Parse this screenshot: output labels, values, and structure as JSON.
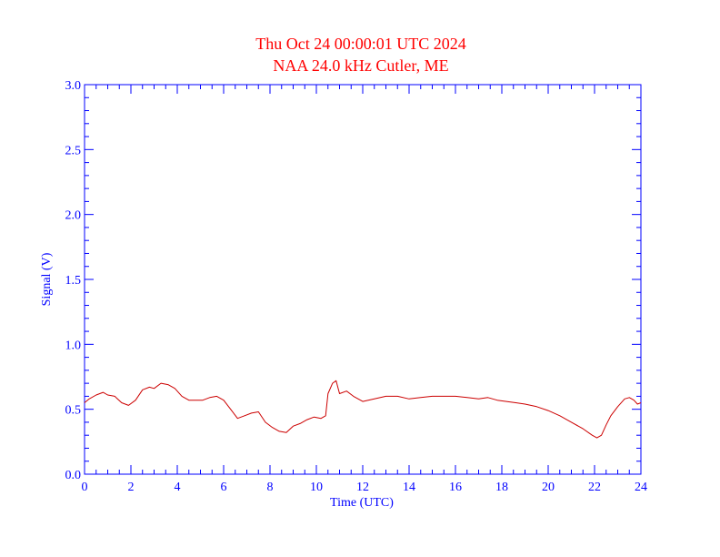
{
  "colors": {
    "title": "#ff0000",
    "axes": "#0000ff",
    "series": "#cc0000",
    "background": "#ffffff"
  },
  "chart_data": {
    "type": "line",
    "title": "Thu Oct 24 00:00:01 UTC 2024",
    "subtitle": "NAA 24.0 kHz Cutler, ME",
    "xlabel": "Time (UTC)",
    "ylabel": "Signal (V)",
    "xlim": [
      0,
      24
    ],
    "ylim": [
      0,
      3.0
    ],
    "x_ticks": [
      0,
      2,
      4,
      6,
      8,
      10,
      12,
      14,
      16,
      18,
      20,
      22,
      24
    ],
    "x_tick_labels": [
      "0",
      "2",
      "4",
      "6",
      "8",
      "10",
      "12",
      "14",
      "16",
      "18",
      "20",
      "22",
      "24"
    ],
    "y_ticks": [
      0,
      0.5,
      1.0,
      1.5,
      2.0,
      2.5,
      3.0
    ],
    "y_tick_labels": [
      "0.0",
      "0.5",
      "1.0",
      "1.5",
      "2.0",
      "2.5",
      "3.0"
    ],
    "grid": false,
    "series": [
      {
        "x": [
          0,
          0.2,
          0.5,
          0.8,
          1.0,
          1.3,
          1.6,
          1.9,
          2.2,
          2.5,
          2.8,
          3.0,
          3.3,
          3.6,
          3.9,
          4.2,
          4.5,
          4.8,
          5.1,
          5.4,
          5.7,
          6.0,
          6.3,
          6.6,
          6.9,
          7.2,
          7.5,
          7.8,
          8.1,
          8.4,
          8.7,
          9.0,
          9.3,
          9.6,
          9.9,
          10.2,
          10.4,
          10.5,
          10.7,
          10.85,
          11.0,
          11.3,
          11.6,
          12.0,
          12.5,
          13.0,
          13.5,
          14.0,
          14.5,
          15.0,
          15.5,
          16.0,
          16.5,
          17.0,
          17.4,
          17.8,
          18.2,
          18.6,
          19.0,
          19.5,
          20.0,
          20.5,
          21.0,
          21.5,
          21.9,
          22.1,
          22.3,
          22.5,
          22.7,
          23.0,
          23.3,
          23.5,
          23.7,
          23.85,
          24.0
        ],
        "y": [
          0.55,
          0.58,
          0.61,
          0.63,
          0.61,
          0.6,
          0.55,
          0.53,
          0.57,
          0.65,
          0.67,
          0.66,
          0.7,
          0.69,
          0.66,
          0.6,
          0.57,
          0.57,
          0.57,
          0.59,
          0.6,
          0.57,
          0.5,
          0.43,
          0.45,
          0.47,
          0.48,
          0.4,
          0.36,
          0.33,
          0.32,
          0.37,
          0.39,
          0.42,
          0.44,
          0.43,
          0.45,
          0.62,
          0.7,
          0.72,
          0.62,
          0.64,
          0.6,
          0.56,
          0.58,
          0.6,
          0.6,
          0.58,
          0.59,
          0.6,
          0.6,
          0.6,
          0.59,
          0.58,
          0.59,
          0.57,
          0.56,
          0.55,
          0.54,
          0.52,
          0.49,
          0.45,
          0.4,
          0.35,
          0.3,
          0.28,
          0.3,
          0.38,
          0.45,
          0.52,
          0.58,
          0.59,
          0.57,
          0.54,
          0.55
        ]
      }
    ]
  }
}
